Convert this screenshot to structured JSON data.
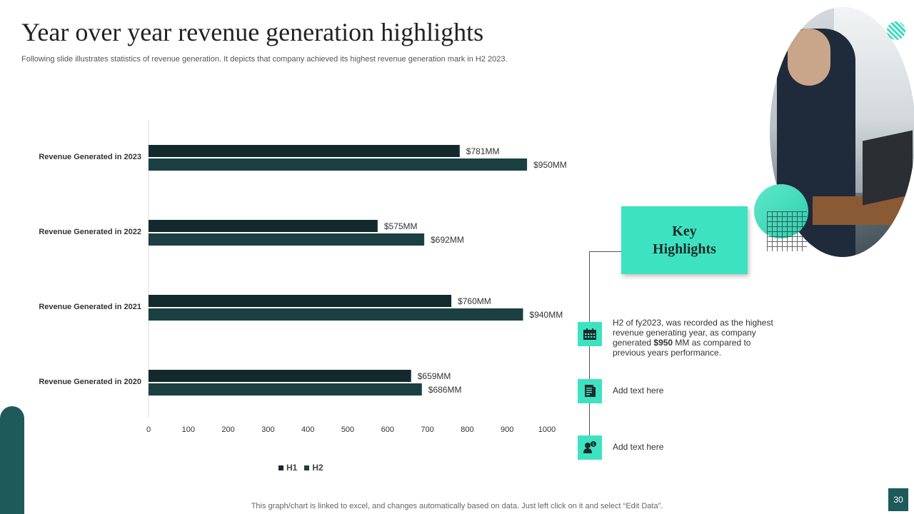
{
  "header": {
    "title": "Year over year revenue generation highlights",
    "subtitle": "Following slide illustrates statistics of revenue generation. It depicts that company achieved its highest revenue generation mark in H2 2023."
  },
  "chart_data": {
    "type": "bar",
    "orientation": "horizontal",
    "categories": [
      "Revenue Generated in 2023",
      "Revenue Generated in 2022",
      "Revenue Generated in 2021",
      "Revenue Generated in 2020"
    ],
    "series": [
      {
        "name": "H1",
        "values": [
          781,
          575,
          760,
          659
        ],
        "labels": [
          "$781MM",
          "$575MM",
          "$760MM",
          "$659MM"
        ],
        "color": "#132a2c"
      },
      {
        "name": "H2",
        "values": [
          950,
          692,
          940,
          686
        ],
        "labels": [
          "$950MM",
          "$692MM",
          "$940MM",
          "$686MM"
        ],
        "color": "#1c3f42"
      }
    ],
    "xlim": [
      0,
      1000
    ],
    "xticks": [
      "0",
      "100",
      "200",
      "300",
      "400",
      "500",
      "600",
      "700",
      "800",
      "900",
      "1000"
    ],
    "legend_position": "bottom",
    "grid": false
  },
  "legend": {
    "h1": "H1",
    "h2": "H2"
  },
  "highlights": {
    "title": "Key Highlights",
    "items": [
      {
        "text_pre": "H2 of fy2023, was recorded as the highest revenue generating year, as company generated ",
        "text_bold": "$950",
        "text_post": " MM  as compared to previous years performance.",
        "icon": "calendar-icon"
      },
      {
        "text": "Add text here",
        "icon": "document-icon"
      },
      {
        "text": "Add text here",
        "icon": "user-money-icon"
      }
    ]
  },
  "footer": {
    "note": "This graph/chart is linked to excel,  and changes automatically based on data. Just left click on it and select “Edit Data”.",
    "page_number": "30"
  },
  "colors": {
    "accent": "#3de3c1",
    "dark_teal": "#1e5a5a",
    "bar_h1": "#132a2c",
    "bar_h2": "#1c3f42"
  }
}
